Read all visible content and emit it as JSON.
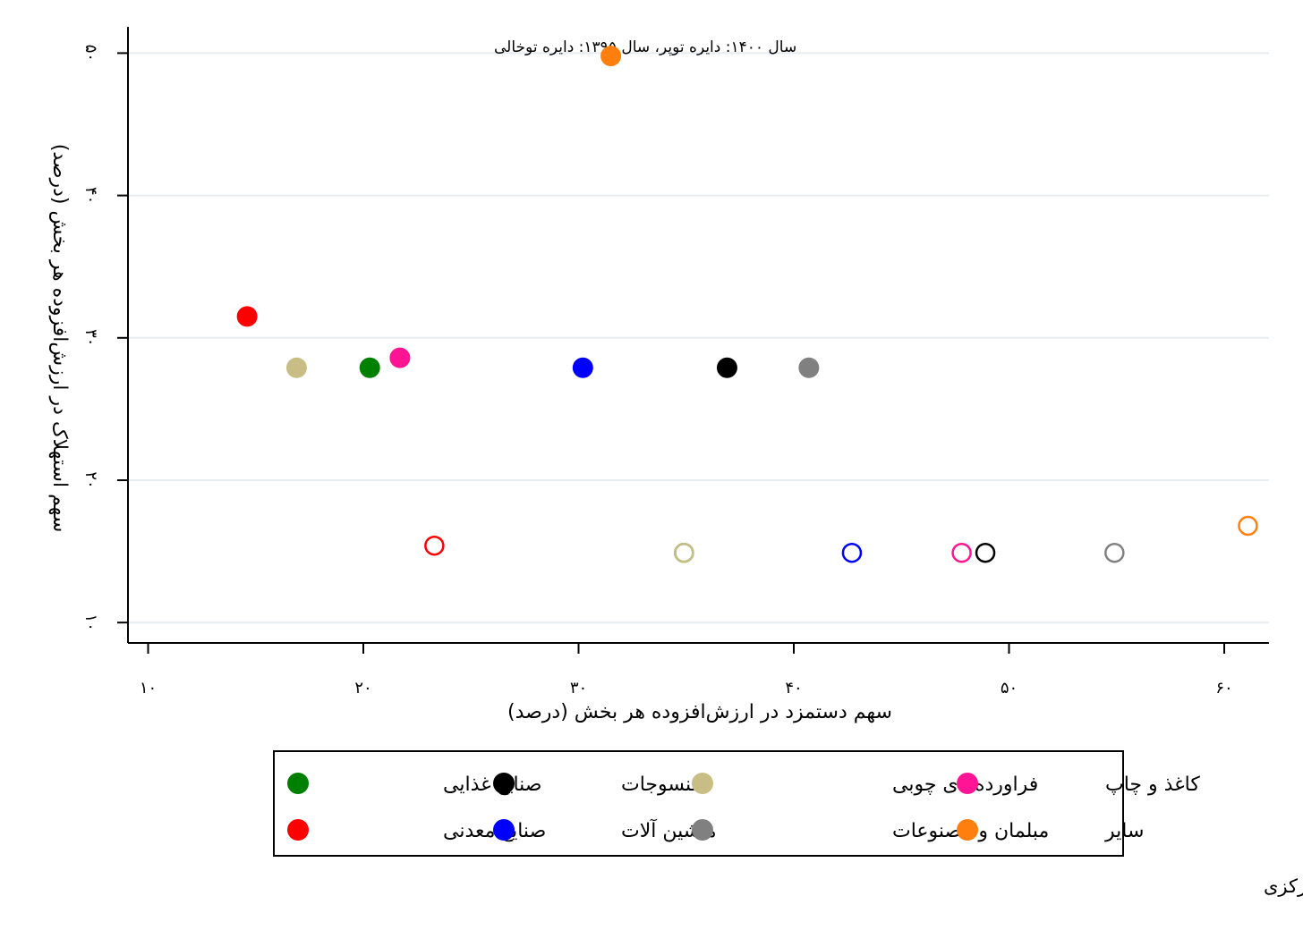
{
  "chart_data": {
    "type": "scatter",
    "xlabel": "سهم دستمزد در ارزش‌افزوده هر بخش (درصد)",
    "ylabel": "سهم استهلاک در ارزش‌افزوده هر بخش (درصد)",
    "note": "سال ۱۴۰۰: دایره توپر، سال ۱۳۹۵: دایره توخالی",
    "xlim": [
      9,
      62
    ],
    "ylim": [
      8.6,
      50.3
    ],
    "x_ticks": [
      10,
      20,
      30,
      40,
      50,
      60
    ],
    "x_tick_labels": [
      "۱۰",
      "۲۰",
      "۳۰",
      "۴۰",
      "۵۰",
      "۶۰"
    ],
    "y_ticks": [
      10,
      20,
      30,
      40,
      50
    ],
    "y_tick_labels": [
      "۱۰",
      "۲۰",
      "۳۰",
      "۴۰",
      "۵۰"
    ],
    "grid": true,
    "series": [
      {
        "name": "صنایع غذایی",
        "color": "#008000",
        "filled": {
          "x": 20.3,
          "y": 27.9
        },
        "hollow": {
          "x": 34.9,
          "y": 14.9
        }
      },
      {
        "name": "منسوجات",
        "color": "#000000",
        "filled": {
          "x": 36.9,
          "y": 27.9
        },
        "hollow": {
          "x": 48.9,
          "y": 14.9
        }
      },
      {
        "name": "فراورده‌های چوبی",
        "color": "#C8BE85",
        "filled": {
          "x": 16.9,
          "y": 27.9
        },
        "hollow": {
          "x": 34.9,
          "y": 14.9
        }
      },
      {
        "name": "کاغذ و چاپ",
        "color": "#FF1493",
        "filled": {
          "x": 21.7,
          "y": 28.6
        },
        "hollow": {
          "x": 47.8,
          "y": 14.9
        }
      },
      {
        "name": "صنایع معدنی",
        "color": "#FF0000",
        "filled": {
          "x": 14.6,
          "y": 31.5
        },
        "hollow": {
          "x": 23.3,
          "y": 15.4
        }
      },
      {
        "name": "ماشین آلات",
        "color": "#0000FF",
        "filled": {
          "x": 30.2,
          "y": 27.9
        },
        "hollow": {
          "x": 42.7,
          "y": 14.9
        }
      },
      {
        "name": "مبلمان و مصنوعات",
        "color": "#808080",
        "filled": {
          "x": 40.7,
          "y": 27.9
        },
        "hollow": {
          "x": 54.9,
          "y": 14.9
        }
      },
      {
        "name": "سایر",
        "color": "#FF7F0E",
        "filled": {
          "x": 31.5,
          "y": 49.8
        },
        "hollow": {
          "x": 61.1,
          "y": 16.8
        }
      }
    ],
    "legend": {
      "placement": "bottom",
      "rows": [
        [
          "صنایع غذایی",
          "منسوجات",
          "فراورده‌های چوبی",
          "کاغذ و چاپ"
        ],
        [
          "صنایع معدنی",
          "ماشین آلات",
          "مبلمان و مصنوعات",
          "سایر"
        ]
      ]
    }
  },
  "source_note": "منبع: جداول داده–ستانده بانک مرکزی",
  "colors": {
    "grid": "#e6ecf0",
    "axis": "#000000",
    "background": "#ffffff"
  }
}
